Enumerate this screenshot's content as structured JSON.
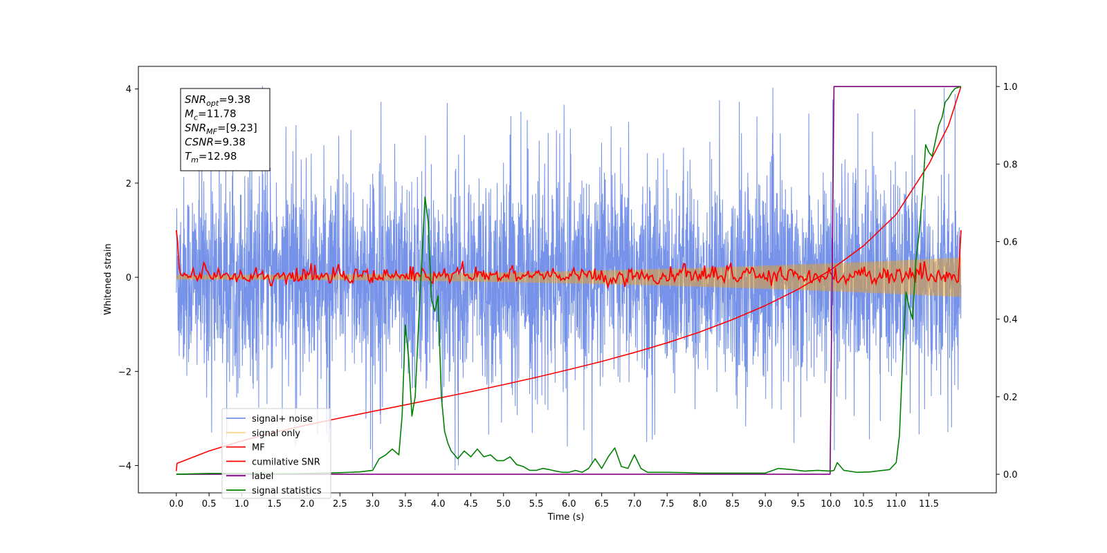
{
  "chart_data": {
    "type": "line",
    "title": "",
    "xlabel": "Time (s)",
    "ylabel": "Whitened strain",
    "y2label": "",
    "xlim": [
      -0.58,
      12.53
    ],
    "ylim": [
      -4.58,
      4.48
    ],
    "y2lim": [
      -0.048,
      1.052
    ],
    "xticks": [
      0.0,
      0.5,
      1.0,
      1.5,
      2.0,
      2.5,
      3.0,
      3.5,
      4.0,
      4.5,
      5.0,
      5.5,
      6.0,
      6.5,
      7.0,
      7.5,
      8.0,
      8.5,
      9.0,
      9.5,
      10.0,
      10.5,
      11.0,
      11.5
    ],
    "xtick_labels": [
      "0.0",
      "0.5",
      "1.0",
      "1.5",
      "2.0",
      "2.5",
      "3.0",
      "3.5",
      "4.0",
      "4.5",
      "5.0",
      "5.5",
      "6.0",
      "6.5",
      "7.0",
      "7.5",
      "8.0",
      "8.5",
      "9.0",
      "9.5",
      "10.0",
      "10.5",
      "11.0",
      "11.5"
    ],
    "yticks": [
      -4,
      -2,
      0,
      2,
      4
    ],
    "ytick_labels": [
      "−4",
      "−2",
      "0",
      "2",
      "4"
    ],
    "y2ticks": [
      0.0,
      0.2,
      0.4,
      0.6,
      0.8,
      1.0
    ],
    "y2tick_labels": [
      "0.0",
      "0.2",
      "0.4",
      "0.6",
      "0.8",
      "1.0"
    ],
    "grid": false,
    "legend_position": "lower-left",
    "info_box": {
      "lines": [
        {
          "sym": "SNR",
          "sub": "opt",
          "val": "=9.38"
        },
        {
          "sym": "M",
          "sub": "c",
          "val": "=11.78"
        },
        {
          "sym": "SNR",
          "sub": "MF",
          "val": "=[9.23]"
        },
        {
          "sym": "CSNR",
          "sub": "",
          "val": "=9.38"
        },
        {
          "sym": "T",
          "sub": "m",
          "val": "=12.98"
        }
      ]
    },
    "series": [
      {
        "name": "signal+ noise",
        "color": "#4169e1",
        "axis": "left",
        "style": "dense-noise",
        "x_range": [
          0.0,
          11.99
        ],
        "typical_band": [
          -2.0,
          2.0
        ],
        "peak_extremes": [
          -4.1,
          4.1
        ]
      },
      {
        "name": "signal only",
        "color": "#ffa500",
        "axis": "left",
        "style": "chirp",
        "x_range": [
          0.0,
          11.99
        ],
        "amplitude_start": 0.05,
        "amplitude_end": 0.42
      },
      {
        "name": "MF",
        "color": "#ff0000",
        "axis": "left",
        "style": "noisy-line",
        "x_range": [
          0.0,
          11.99
        ],
        "start_value": 1.0,
        "typical_band": [
          -0.15,
          0.2
        ],
        "end_value": 1.0
      },
      {
        "name": "cumilative SNR",
        "color": "#ff0000",
        "axis": "right",
        "x": [
          0.0,
          0.01,
          0.5,
          1.0,
          1.5,
          2.0,
          2.5,
          3.0,
          3.5,
          4.0,
          4.5,
          5.0,
          5.5,
          6.0,
          6.5,
          7.0,
          7.5,
          8.0,
          8.5,
          9.0,
          9.5,
          10.0,
          10.5,
          11.0,
          11.5,
          11.8,
          11.99
        ],
        "y": [
          0.008,
          0.028,
          0.06,
          0.086,
          0.108,
          0.127,
          0.145,
          0.162,
          0.179,
          0.196,
          0.213,
          0.231,
          0.25,
          0.27,
          0.291,
          0.314,
          0.339,
          0.367,
          0.399,
          0.435,
          0.477,
          0.527,
          0.589,
          0.67,
          0.8,
          0.9,
          1.0
        ]
      },
      {
        "name": "label",
        "color": "#800080",
        "axis": "right",
        "x": [
          0.0,
          9.99,
          10.05,
          11.99
        ],
        "y": [
          0.0,
          0.0,
          1.0,
          1.0
        ]
      },
      {
        "name": "signal statistics",
        "color": "#008000",
        "axis": "right",
        "x": [
          0.0,
          0.5,
          1.0,
          1.5,
          2.0,
          2.5,
          2.8,
          3.0,
          3.1,
          3.2,
          3.3,
          3.4,
          3.45,
          3.5,
          3.55,
          3.6,
          3.65,
          3.7,
          3.75,
          3.8,
          3.85,
          3.9,
          3.95,
          4.0,
          4.05,
          4.1,
          4.15,
          4.2,
          4.3,
          4.4,
          4.5,
          4.6,
          4.7,
          4.8,
          4.9,
          5.0,
          5.1,
          5.2,
          5.3,
          5.4,
          5.5,
          5.6,
          5.7,
          5.8,
          5.9,
          6.0,
          6.1,
          6.2,
          6.3,
          6.4,
          6.5,
          6.6,
          6.7,
          6.8,
          6.9,
          7.0,
          7.1,
          7.2,
          7.3,
          7.4,
          7.5,
          7.8,
          8.0,
          8.5,
          9.0,
          9.2,
          9.4,
          9.6,
          9.8,
          10.0,
          10.05,
          10.1,
          10.2,
          10.4,
          10.6,
          10.8,
          10.9,
          11.0,
          11.05,
          11.1,
          11.15,
          11.2,
          11.25,
          11.3,
          11.35,
          11.4,
          11.45,
          11.5,
          11.55,
          11.6,
          11.65,
          11.7,
          11.75,
          11.8,
          11.85,
          11.9,
          11.99
        ],
        "y": [
          0.0,
          0.002,
          0.002,
          0.001,
          0.002,
          0.004,
          0.006,
          0.01,
          0.04,
          0.05,
          0.065,
          0.05,
          0.15,
          0.385,
          0.3,
          0.15,
          0.2,
          0.38,
          0.55,
          0.715,
          0.65,
          0.45,
          0.42,
          0.46,
          0.2,
          0.11,
          0.08,
          0.06,
          0.04,
          0.06,
          0.045,
          0.065,
          0.045,
          0.05,
          0.035,
          0.035,
          0.045,
          0.025,
          0.02,
          0.01,
          0.01,
          0.015,
          0.012,
          0.008,
          0.005,
          0.005,
          0.01,
          0.005,
          0.015,
          0.04,
          0.015,
          0.045,
          0.068,
          0.02,
          0.015,
          0.05,
          0.015,
          0.005,
          0.005,
          0.005,
          0.005,
          0.004,
          0.003,
          0.003,
          0.003,
          0.015,
          0.012,
          0.008,
          0.01,
          0.008,
          0.01,
          0.03,
          0.01,
          0.005,
          0.006,
          0.01,
          0.012,
          0.03,
          0.1,
          0.3,
          0.47,
          0.43,
          0.4,
          0.55,
          0.62,
          0.72,
          0.85,
          0.83,
          0.82,
          0.86,
          0.9,
          0.92,
          0.96,
          0.97,
          0.985,
          0.995,
          1.0
        ]
      }
    ]
  }
}
